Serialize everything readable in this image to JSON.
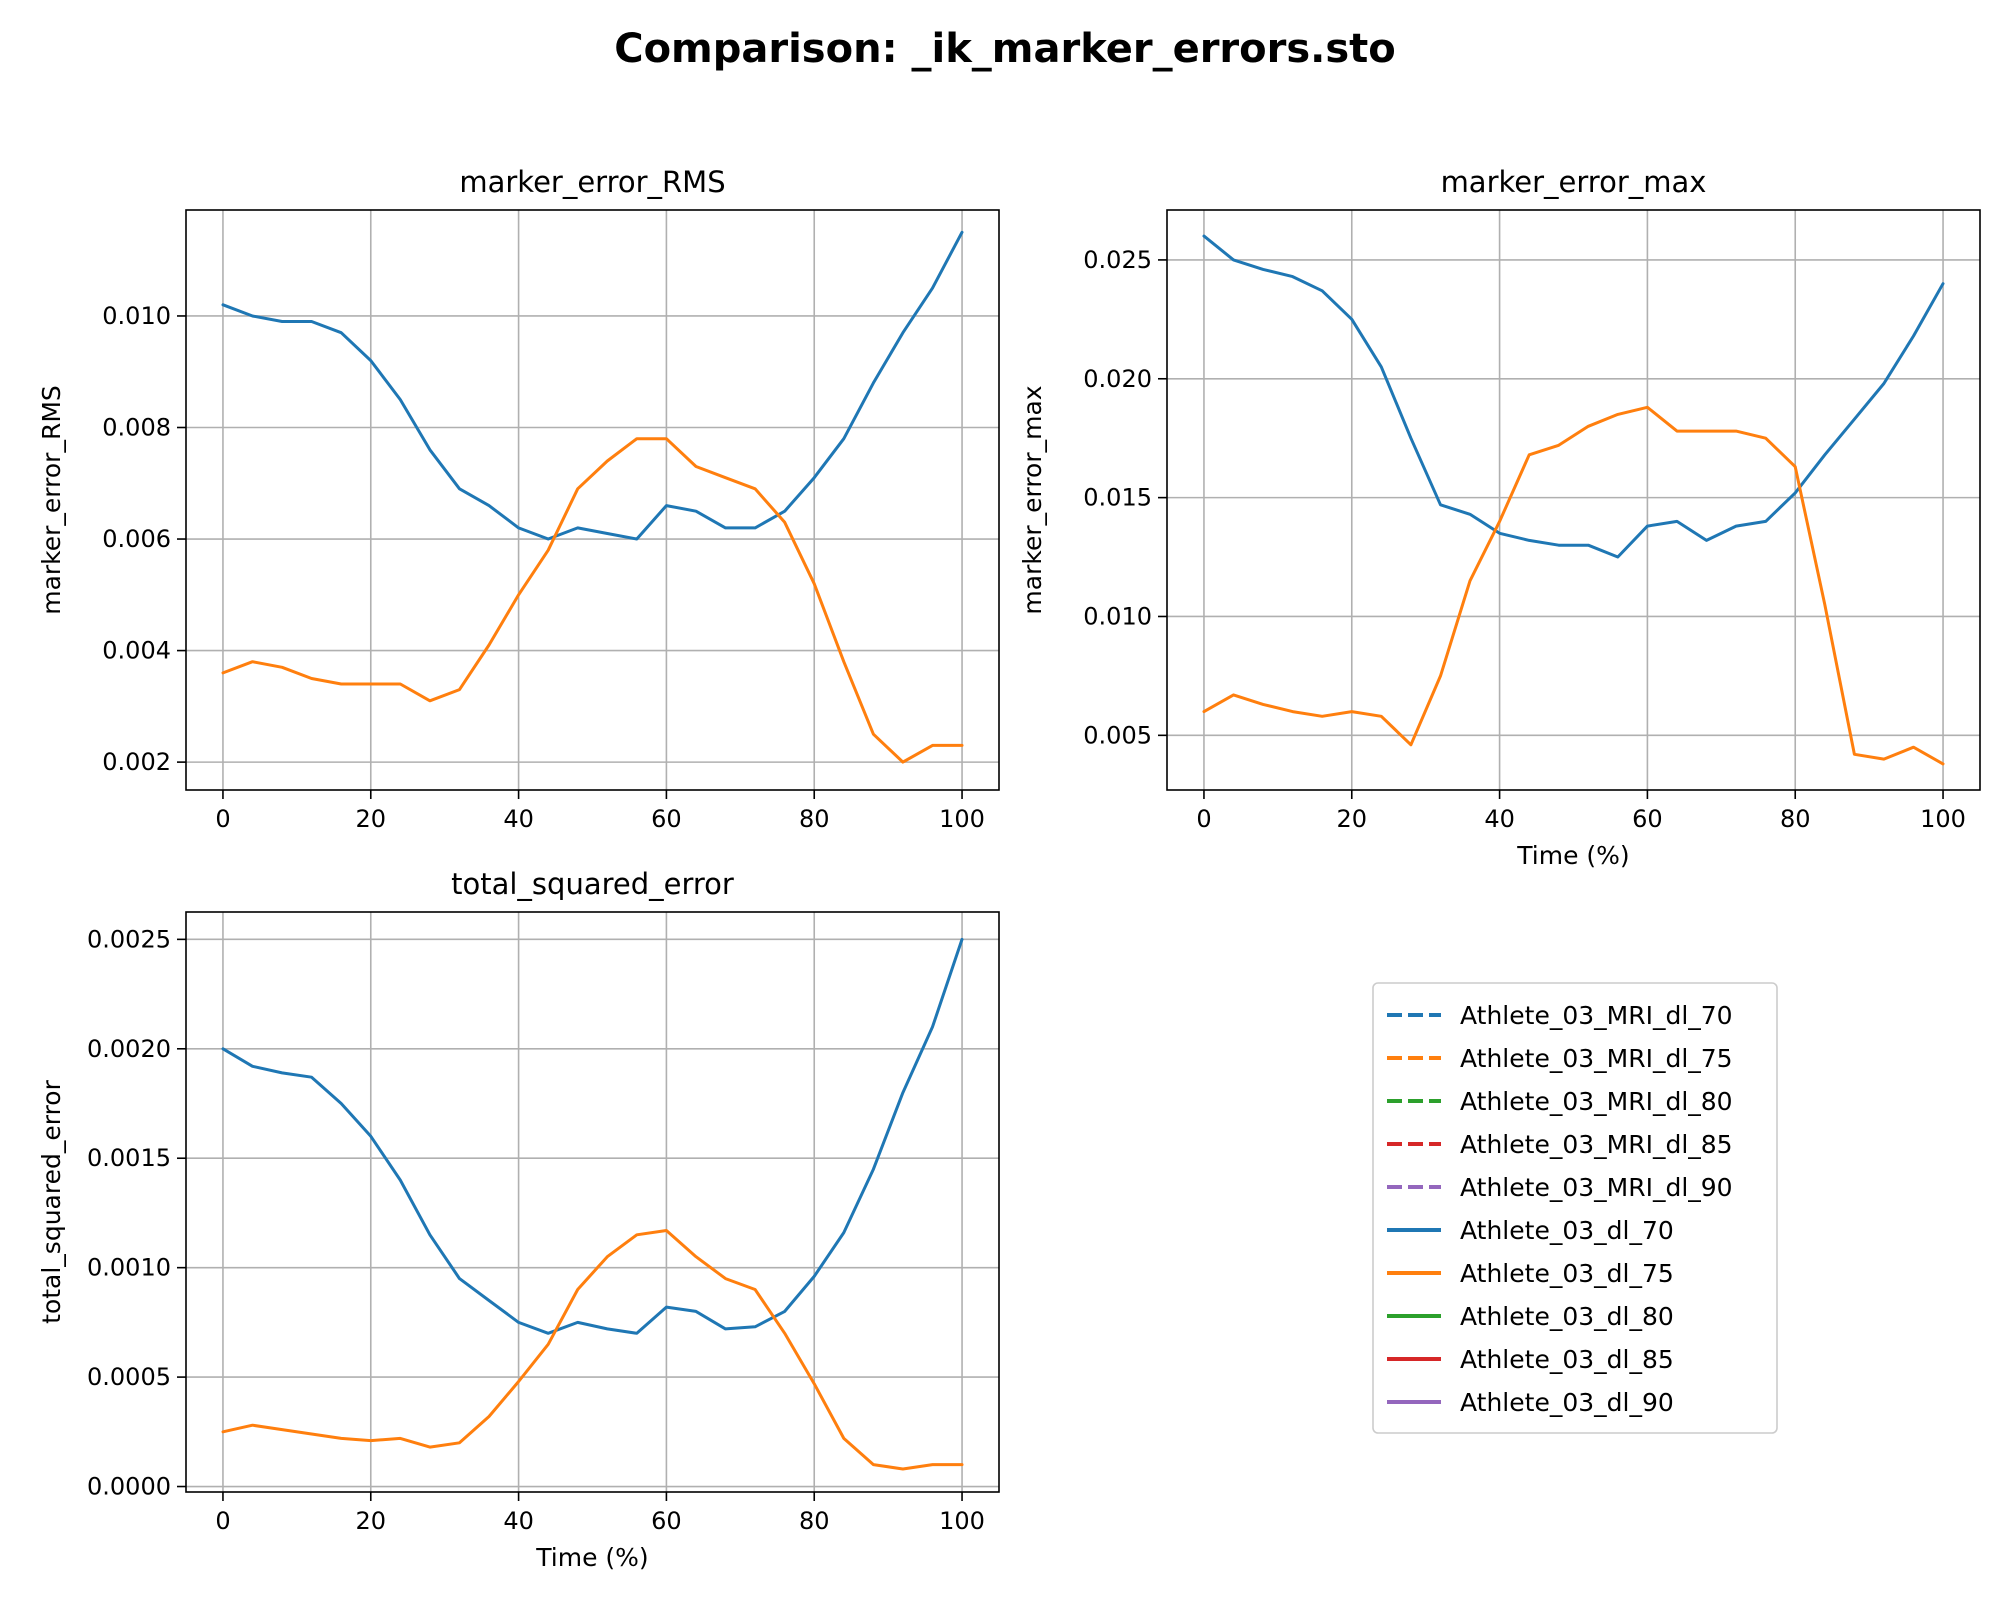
{
  "figure": {
    "title": "Comparison: _ik_marker_errors.sto"
  },
  "colors": {
    "c0": "#1f77b4",
    "c1": "#ff7f0e",
    "c2": "#2ca02c",
    "c3": "#d62728",
    "c4": "#9467bd",
    "grid": "#b0b0b0",
    "axis": "#000000"
  },
  "legend": {
    "placement": "right-middle (empty fourth panel)",
    "entries": [
      {
        "label": "Athlete_03_MRI_dl_70",
        "color": "#1f77b4",
        "style": "dashed"
      },
      {
        "label": "Athlete_03_MRI_dl_75",
        "color": "#ff7f0e",
        "style": "dashed"
      },
      {
        "label": "Athlete_03_MRI_dl_80",
        "color": "#2ca02c",
        "style": "dashed"
      },
      {
        "label": "Athlete_03_MRI_dl_85",
        "color": "#d62728",
        "style": "dashed"
      },
      {
        "label": "Athlete_03_MRI_dl_90",
        "color": "#9467bd",
        "style": "dashed"
      },
      {
        "label": "Athlete_03_dl_70",
        "color": "#1f77b4",
        "style": "solid"
      },
      {
        "label": "Athlete_03_dl_75",
        "color": "#ff7f0e",
        "style": "solid"
      },
      {
        "label": "Athlete_03_dl_80",
        "color": "#2ca02c",
        "style": "solid"
      },
      {
        "label": "Athlete_03_dl_85",
        "color": "#d62728",
        "style": "solid"
      },
      {
        "label": "Athlete_03_dl_90",
        "color": "#9467bd",
        "style": "solid"
      }
    ]
  },
  "chart_data": [
    {
      "type": "line",
      "title": "marker_error_RMS",
      "xlabel": "",
      "ylabel": "marker_error_RMS",
      "xlim": [
        -5,
        105
      ],
      "ylim": [
        0.0015,
        0.0119
      ],
      "xticks": [
        0,
        20,
        40,
        60,
        80,
        100
      ],
      "xtick_labels": [
        "0",
        "20",
        "40",
        "60",
        "80",
        "100"
      ],
      "yticks": [
        0.002,
        0.004,
        0.006,
        0.008,
        0.01
      ],
      "ytick_labels": [
        "0.002",
        "0.004",
        "0.006",
        "0.008",
        "0.010"
      ],
      "grid": true,
      "series": [
        {
          "name": "Athlete_03_dl_70",
          "color": "#1f77b4",
          "x": [
            0,
            4,
            8,
            12,
            16,
            20,
            24,
            28,
            32,
            36,
            40,
            44,
            48,
            52,
            56,
            60,
            64,
            68,
            72,
            76,
            80,
            84,
            88,
            92,
            96,
            100
          ],
          "y": [
            0.0102,
            0.01,
            0.0099,
            0.0099,
            0.0097,
            0.0092,
            0.0085,
            0.0076,
            0.0069,
            0.0066,
            0.0062,
            0.006,
            0.0062,
            0.0061,
            0.006,
            0.0066,
            0.0065,
            0.0062,
            0.0062,
            0.0065,
            0.0071,
            0.0078,
            0.0088,
            0.0097,
            0.0105,
            0.0115
          ]
        },
        {
          "name": "Athlete_03_dl_75",
          "color": "#ff7f0e",
          "x": [
            0,
            4,
            8,
            12,
            16,
            20,
            24,
            28,
            32,
            36,
            40,
            44,
            48,
            52,
            56,
            60,
            64,
            68,
            72,
            76,
            80,
            84,
            88,
            92,
            96,
            100
          ],
          "y": [
            0.0036,
            0.0038,
            0.0037,
            0.0035,
            0.0034,
            0.0034,
            0.0034,
            0.0031,
            0.0033,
            0.0041,
            0.005,
            0.0058,
            0.0069,
            0.0074,
            0.0078,
            0.0078,
            0.0073,
            0.0071,
            0.0069,
            0.0063,
            0.0052,
            0.0038,
            0.0025,
            0.002,
            0.0023,
            0.0023
          ]
        }
      ]
    },
    {
      "type": "line",
      "title": "marker_error_max",
      "xlabel": "Time (%)",
      "ylabel": "marker_error_max",
      "xlim": [
        -5,
        105
      ],
      "ylim": [
        0.0027,
        0.0271
      ],
      "xticks": [
        0,
        20,
        40,
        60,
        80,
        100
      ],
      "xtick_labels": [
        "0",
        "20",
        "40",
        "60",
        "80",
        "100"
      ],
      "yticks": [
        0.005,
        0.01,
        0.015,
        0.02,
        0.025
      ],
      "ytick_labels": [
        "0.005",
        "0.010",
        "0.015",
        "0.020",
        "0.025"
      ],
      "grid": true,
      "series": [
        {
          "name": "Athlete_03_dl_70",
          "color": "#1f77b4",
          "x": [
            0,
            4,
            8,
            12,
            16,
            20,
            24,
            28,
            32,
            36,
            40,
            44,
            48,
            52,
            56,
            60,
            64,
            68,
            72,
            76,
            80,
            84,
            88,
            92,
            96,
            100
          ],
          "y": [
            0.026,
            0.025,
            0.0246,
            0.0243,
            0.0237,
            0.0225,
            0.0205,
            0.0175,
            0.0147,
            0.0143,
            0.0135,
            0.0132,
            0.013,
            0.013,
            0.0125,
            0.0138,
            0.014,
            0.0132,
            0.0138,
            0.014,
            0.0152,
            0.0168,
            0.0183,
            0.0198,
            0.0218,
            0.024
          ]
        },
        {
          "name": "Athlete_03_dl_75",
          "color": "#ff7f0e",
          "x": [
            0,
            4,
            8,
            12,
            16,
            20,
            24,
            28,
            32,
            36,
            40,
            44,
            48,
            52,
            56,
            60,
            64,
            68,
            72,
            76,
            80,
            84,
            88,
            92,
            96,
            100
          ],
          "y": [
            0.006,
            0.0067,
            0.0063,
            0.006,
            0.0058,
            0.006,
            0.0058,
            0.0046,
            0.0075,
            0.0115,
            0.014,
            0.0168,
            0.0172,
            0.018,
            0.0185,
            0.0188,
            0.0178,
            0.0178,
            0.0178,
            0.0175,
            0.0163,
            0.0105,
            0.0042,
            0.004,
            0.0045,
            0.0038
          ]
        }
      ]
    },
    {
      "type": "line",
      "title": "total_squared_error",
      "xlabel": "Time (%)",
      "ylabel": "total_squared_error",
      "xlim": [
        -5,
        105
      ],
      "ylim": [
        -2.5e-05,
        0.002625
      ],
      "xticks": [
        0,
        20,
        40,
        60,
        80,
        100
      ],
      "xtick_labels": [
        "0",
        "20",
        "40",
        "60",
        "80",
        "100"
      ],
      "yticks": [
        0,
        0.0005,
        0.001,
        0.0015,
        0.002,
        0.0025
      ],
      "ytick_labels": [
        "0.0000",
        "0.0005",
        "0.0010",
        "0.0015",
        "0.0020",
        "0.0025"
      ],
      "grid": true,
      "series": [
        {
          "name": "Athlete_03_dl_70",
          "color": "#1f77b4",
          "x": [
            0,
            4,
            8,
            12,
            16,
            20,
            24,
            28,
            32,
            36,
            40,
            44,
            48,
            52,
            56,
            60,
            64,
            68,
            72,
            76,
            80,
            84,
            88,
            92,
            96,
            100
          ],
          "y": [
            0.002,
            0.00192,
            0.00189,
            0.00187,
            0.00175,
            0.0016,
            0.0014,
            0.00115,
            0.00095,
            0.00085,
            0.00075,
            0.0007,
            0.00075,
            0.00072,
            0.0007,
            0.00082,
            0.0008,
            0.00072,
            0.00073,
            0.0008,
            0.00096,
            0.00116,
            0.00145,
            0.0018,
            0.0021,
            0.0025
          ]
        },
        {
          "name": "Athlete_03_dl_75",
          "color": "#ff7f0e",
          "x": [
            0,
            4,
            8,
            12,
            16,
            20,
            24,
            28,
            32,
            36,
            40,
            44,
            48,
            52,
            56,
            60,
            64,
            68,
            72,
            76,
            80,
            84,
            88,
            92,
            96,
            100
          ],
          "y": [
            0.00025,
            0.00028,
            0.00026,
            0.00024,
            0.00022,
            0.00021,
            0.00022,
            0.00018,
            0.0002,
            0.00032,
            0.00048,
            0.00065,
            0.0009,
            0.00105,
            0.00115,
            0.00117,
            0.00105,
            0.00095,
            0.0009,
            0.0007,
            0.00047,
            0.00022,
            0.0001,
            8e-05,
            0.0001,
            0.0001
          ]
        }
      ]
    }
  ]
}
